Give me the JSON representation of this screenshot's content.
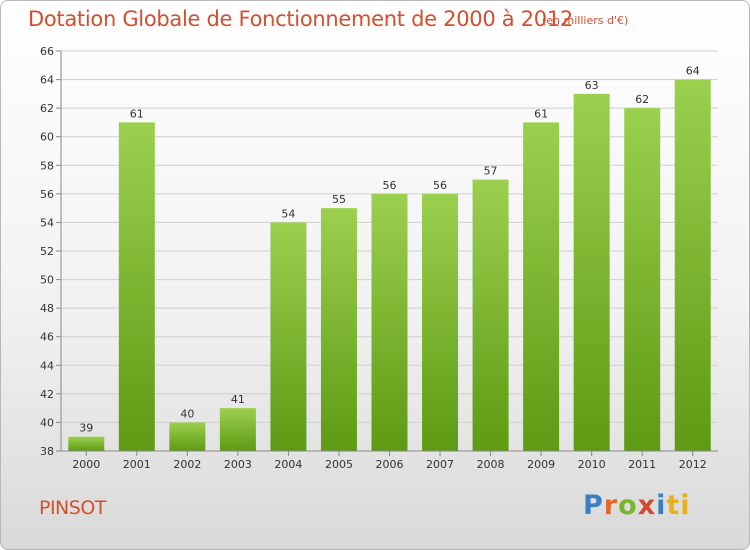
{
  "chart_data": {
    "type": "bar",
    "title": "Dotation Globale de Fonctionnement de 2000 à 2012",
    "subtitle": "(en milliers d'€)",
    "categories": [
      "2000",
      "2001",
      "2002",
      "2003",
      "2004",
      "2005",
      "2006",
      "2007",
      "2008",
      "2009",
      "2010",
      "2011",
      "2012"
    ],
    "values": [
      39,
      61,
      40,
      41,
      54,
      55,
      56,
      56,
      57,
      61,
      63,
      62,
      64
    ],
    "data_labels": [
      "39",
      "61",
      "40",
      "41",
      "54",
      "55",
      "56",
      "56",
      "57",
      "61",
      "63",
      "62",
      "64"
    ],
    "ylim": [
      38,
      66
    ],
    "yticks": [
      "38",
      "40",
      "42",
      "44",
      "46",
      "48",
      "50",
      "52",
      "54",
      "56",
      "58",
      "60",
      "62",
      "64",
      "66"
    ],
    "xlabel": "",
    "ylabel": "",
    "grid": true,
    "colors": {
      "bar_top": "#9bd04e",
      "bar_bottom": "#5e9a14",
      "text": "#333333",
      "title": "#d24f2f"
    }
  },
  "footer": {
    "city": "PINSOT",
    "logo": [
      "P",
      "r",
      "o",
      "x",
      "i",
      "ti"
    ]
  }
}
